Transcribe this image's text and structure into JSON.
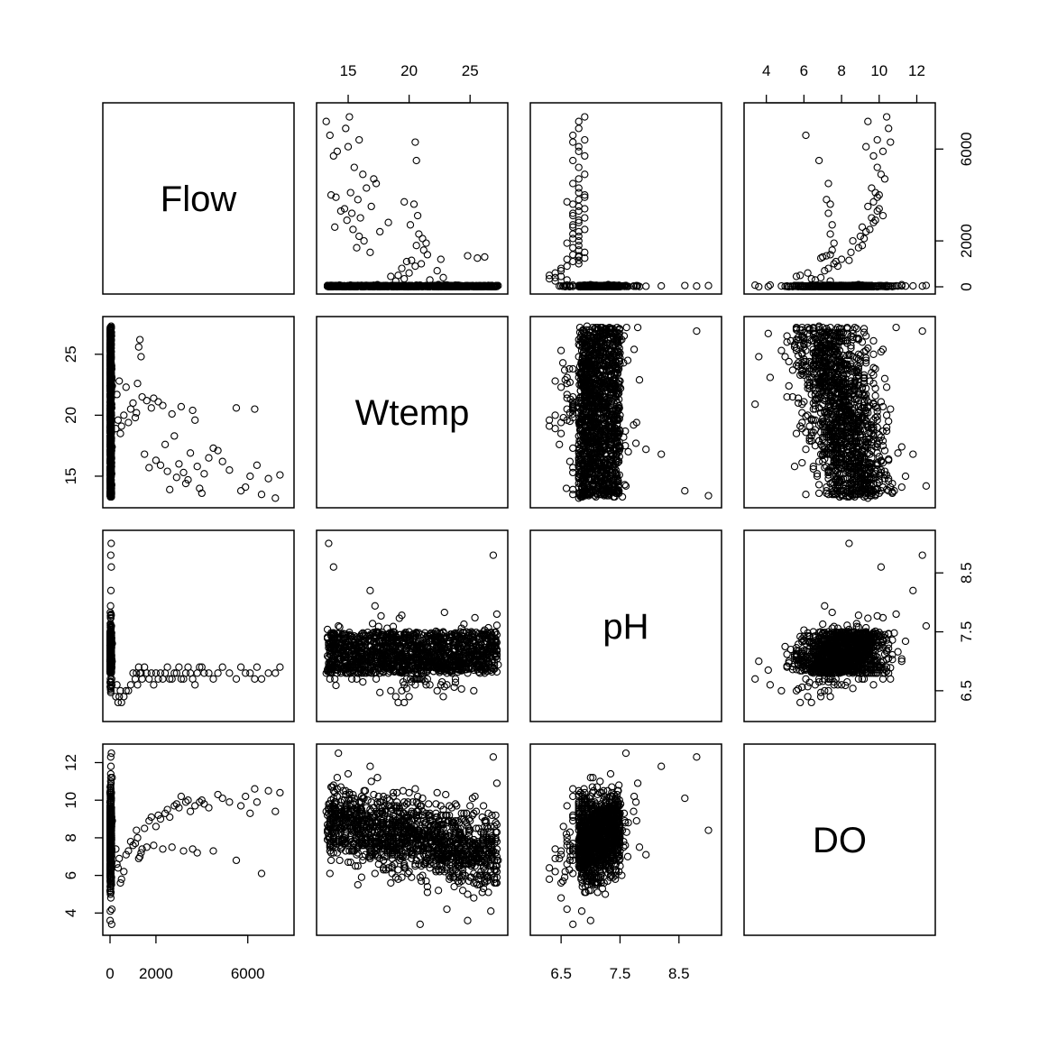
{
  "chart_data": {
    "type": "scatter",
    "kind": "pairs-matrix",
    "variables": [
      "Flow",
      "Wtemp",
      "pH",
      "DO"
    ],
    "ranges": {
      "Flow": [
        0,
        7700
      ],
      "Wtemp": [
        13.0,
        27.5
      ],
      "pH": [
        6.1,
        9.1
      ],
      "DO": [
        3.2,
        12.6
      ]
    },
    "ticks": {
      "Flow": [
        0,
        2000,
        6000
      ],
      "Wtemp": [
        15,
        20,
        25
      ],
      "pH": [
        6.5,
        7.5,
        8.5
      ],
      "DO": [
        4,
        6,
        8,
        10,
        12
      ]
    },
    "tick_labels": {
      "Flow": [
        "0",
        "2000",
        "6000"
      ],
      "Wtemp": [
        "15",
        "20",
        "25"
      ],
      "pH": [
        "6.5",
        "7.5",
        "8.5"
      ],
      "DO": [
        "4",
        "6",
        "8",
        "10",
        "12"
      ]
    },
    "axis_placement": {
      "Flow": "bottom",
      "Wtemp": "top",
      "pH": "bottom",
      "DO": "top",
      "Flow_y": "right",
      "Wtemp_y": "left",
      "pH_y": "right",
      "DO_y": "left"
    },
    "observations": [
      [
        7400,
        15.1,
        6.9,
        10.4
      ],
      [
        7200,
        13.2,
        6.8,
        9.4
      ],
      [
        6900,
        14.8,
        6.8,
        10.5
      ],
      [
        6600,
        13.5,
        6.7,
        6.1
      ],
      [
        6400,
        15.9,
        6.9,
        9.9
      ],
      [
        6300,
        20.5,
        6.7,
        10.6
      ],
      [
        6100,
        15.0,
        6.8,
        9.3
      ],
      [
        5900,
        14.1,
        6.8,
        10.2
      ],
      [
        5700,
        13.8,
        6.9,
        9.7
      ],
      [
        5500,
        20.6,
        6.7,
        6.8
      ],
      [
        5200,
        15.5,
        6.8,
        9.9
      ],
      [
        4900,
        16.2,
        6.9,
        10.1
      ],
      [
        4700,
        17.1,
        6.8,
        10.3
      ],
      [
        4500,
        17.3,
        6.7,
        7.3
      ],
      [
        4300,
        16.5,
        6.8,
        9.6
      ],
      [
        4100,
        15.2,
        6.8,
        9.8
      ],
      [
        4000,
        13.6,
        6.9,
        10.0
      ],
      [
        3900,
        14.0,
        6.9,
        9.9
      ],
      [
        3800,
        15.8,
        6.8,
        7.2
      ],
      [
        3700,
        19.6,
        6.6,
        9.7
      ],
      [
        3600,
        20.4,
        6.7,
        7.4
      ],
      [
        3500,
        16.9,
        6.8,
        9.4
      ],
      [
        3400,
        14.7,
        6.9,
        10.0
      ],
      [
        3300,
        14.4,
        6.8,
        9.9
      ],
      [
        3200,
        15.3,
        6.7,
        7.3
      ],
      [
        3100,
        20.7,
        6.7,
        10.2
      ],
      [
        3000,
        16.0,
        6.9,
        9.6
      ],
      [
        2900,
        14.9,
        6.8,
        9.8
      ],
      [
        2800,
        18.3,
        6.8,
        9.7
      ],
      [
        2700,
        20.1,
        6.7,
        7.5
      ],
      [
        2600,
        13.9,
        6.7,
        9.1
      ],
      [
        2500,
        15.4,
        6.9,
        9.5
      ],
      [
        2400,
        17.6,
        6.8,
        9.3
      ],
      [
        2300,
        20.8,
        6.7,
        7.4
      ],
      [
        2200,
        15.9,
        6.8,
        9.0
      ],
      [
        2100,
        21.1,
        6.7,
        9.2
      ],
      [
        2000,
        16.3,
        6.8,
        8.6
      ],
      [
        1900,
        21.4,
        6.6,
        7.6
      ],
      [
        1800,
        20.6,
        6.8,
        9.1
      ],
      [
        1700,
        15.7,
        6.7,
        8.9
      ],
      [
        1600,
        21.2,
        6.8,
        7.5
      ],
      [
        1500,
        16.8,
        6.9,
        8.5
      ],
      [
        1400,
        21.5,
        6.7,
        7.4
      ],
      [
        1350,
        24.8,
        6.8,
        7.2
      ],
      [
        1300,
        26.2,
        6.8,
        7.0
      ],
      [
        1250,
        25.6,
        6.9,
        6.9
      ],
      [
        1200,
        22.6,
        6.6,
        8.0
      ],
      [
        1150,
        20.2,
        6.8,
        8.4
      ],
      [
        1100,
        19.8,
        6.7,
        7.7
      ],
      [
        1000,
        21.0,
        6.8,
        7.6
      ],
      [
        900,
        20.5,
        6.6,
        7.8
      ],
      [
        800,
        19.4,
        6.5,
        7.3
      ],
      [
        700,
        22.3,
        6.5,
        7.1
      ],
      [
        600,
        20.0,
        6.4,
        6.2
      ],
      [
        500,
        19.1,
        6.3,
        5.8
      ],
      [
        450,
        18.5,
        6.5,
        5.6
      ],
      [
        400,
        22.8,
        6.4,
        6.9
      ],
      [
        350,
        19.6,
        6.3,
        6.4
      ],
      [
        300,
        21.7,
        6.6,
        6.6
      ],
      [
        250,
        18.9,
        6.4,
        7.4
      ],
      [
        60,
        14.2,
        7.6,
        12.5
      ],
      [
        40,
        16.8,
        8.2,
        11.8
      ],
      [
        20,
        18.9,
        7.1,
        9.6
      ],
      [
        10,
        21.5,
        6.9,
        5.1
      ],
      [
        5,
        24.8,
        7.0,
        3.6
      ],
      [
        30,
        26.9,
        8.8,
        12.3
      ],
      [
        50,
        13.4,
        9.0,
        8.4
      ],
      [
        80,
        23.1,
        6.6,
        4.2
      ],
      [
        100,
        22.4,
        7.3,
        8.9
      ],
      [
        15,
        15.8,
        6.8,
        6.5
      ],
      [
        25,
        19.7,
        7.4,
        7.7
      ],
      [
        45,
        27.2,
        7.8,
        10.9
      ],
      [
        70,
        20.9,
        6.7,
        3.4
      ],
      [
        90,
        17.4,
        7.0,
        11.2
      ],
      [
        35,
        25.3,
        6.5,
        4.8
      ],
      [
        55,
        13.8,
        8.6,
        10.1
      ]
    ]
  }
}
